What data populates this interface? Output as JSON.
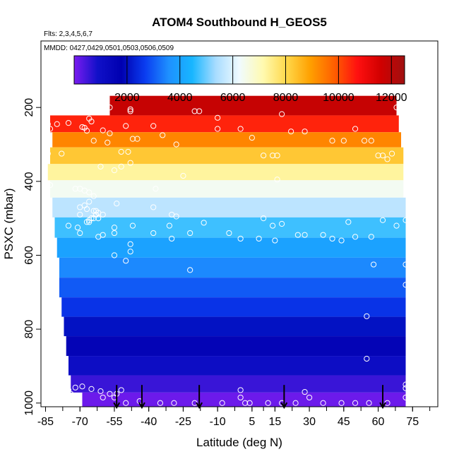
{
  "chart_data": {
    "type": "heatmap",
    "title": "ATOM4 Southbound H_GEOS5",
    "subtitle_flights": "Flts: 2,3,4,5,6,7",
    "subtitle_dates": "MMDD: 0427,0429,0501,0503,0506,0509",
    "xlabel": "Latitude (deg N)",
    "ylabel": "PSXC (mbar)",
    "xlim": [
      -87,
      86
    ],
    "ylim": [
      1010,
      20
    ],
    "x_ticks": [
      -85,
      -70,
      -55,
      -40,
      -25,
      -10,
      5,
      15,
      30,
      45,
      60,
      75
    ],
    "x_tick_labels": [
      "-85",
      "-70",
      "-55",
      "-40",
      "-25",
      "-10",
      "5",
      "15",
      "30",
      "45",
      "60",
      "75"
    ],
    "x_minor_ticks": [
      -85,
      -77.5,
      -70,
      -62.5,
      -55,
      -47.5,
      -40,
      -32.5,
      -25,
      -17.5,
      -10,
      -2.5,
      5,
      10,
      15,
      22.5,
      30,
      37.5,
      45,
      52.5,
      60,
      67.5,
      75,
      82.5
    ],
    "y_ticks": [
      200,
      400,
      600,
      800,
      1000
    ],
    "y_tick_labels": [
      "200",
      "400",
      "600",
      "800",
      "1000"
    ],
    "colorbar": {
      "min": 0,
      "max": 12500,
      "ticks": [
        2000,
        4000,
        6000,
        8000,
        10000,
        12000
      ],
      "tick_labels": [
        "2000",
        "4000",
        "6000",
        "8000",
        "10000",
        "12000"
      ],
      "colors": [
        "#7a1cf0",
        "#1010c8",
        "#0000b0",
        "#0a3cf0",
        "#1e90ff",
        "#18b6ff",
        "#a8dcff",
        "#f0fbff",
        "#fffab0",
        "#ffd84a",
        "#ffa000",
        "#ff6000",
        "#ff1010",
        "#d00000",
        "#a01010"
      ]
    },
    "grid": false,
    "levels": [
      {
        "p": 195,
        "lat_min": -57,
        "lat_max": 68,
        "value": 11800
      },
      {
        "p": 248,
        "lat_min": -83,
        "lat_max": 69,
        "value": 10500
      },
      {
        "p": 286,
        "lat_min": -82,
        "lat_max": 70,
        "value": 9300
      },
      {
        "p": 330,
        "lat_min": -83,
        "lat_max": 71,
        "value": 8300
      },
      {
        "p": 376,
        "lat_min": -84,
        "lat_max": 71,
        "value": 7300
      },
      {
        "p": 418,
        "lat_min": -83,
        "lat_max": 71,
        "value": 6400
      },
      {
        "p": 470,
        "lat_min": -82,
        "lat_max": 72,
        "value": 5600
      },
      {
        "p": 525,
        "lat_min": -81,
        "lat_max": 72,
        "value": 4700
      },
      {
        "p": 580,
        "lat_min": -80,
        "lat_max": 72,
        "value": 4000
      },
      {
        "p": 633,
        "lat_min": -79,
        "lat_max": 72,
        "value": 3500
      },
      {
        "p": 688,
        "lat_min": -79,
        "lat_max": 72,
        "value": 3000
      },
      {
        "p": 740,
        "lat_min": -78,
        "lat_max": 72,
        "value": 2550
      },
      {
        "p": 793,
        "lat_min": -77,
        "lat_max": 72,
        "value": 2050
      },
      {
        "p": 845,
        "lat_min": -76,
        "lat_max": 72,
        "value": 1550
      },
      {
        "p": 900,
        "lat_min": -75,
        "lat_max": 72,
        "value": 1050
      },
      {
        "p": 950,
        "lat_min": -74,
        "lat_max": 72,
        "value": 550
      },
      {
        "p": 993,
        "lat_min": -69,
        "lat_max": 72,
        "value": 120
      }
    ],
    "observation_points": [
      [
        -60,
        205
      ],
      [
        -57,
        200
      ],
      [
        -48,
        205
      ],
      [
        -48,
        210
      ],
      [
        -20,
        210
      ],
      [
        -18,
        210
      ],
      [
        -10,
        228
      ],
      [
        18,
        218
      ],
      [
        -66,
        230
      ],
      [
        -65,
        238
      ],
      [
        -84,
        245
      ],
      [
        -80,
        245
      ],
      [
        -75,
        242
      ],
      [
        -69,
        253
      ],
      [
        -50,
        250
      ],
      [
        -38,
        250
      ],
      [
        -10,
        258
      ],
      [
        0,
        258
      ],
      [
        22,
        265
      ],
      [
        28,
        265
      ],
      [
        50,
        258
      ],
      [
        68,
        200
      ],
      [
        70,
        200
      ],
      [
        -83,
        258
      ],
      [
        -68,
        255
      ],
      [
        -67,
        263
      ],
      [
        -60,
        262
      ],
      [
        -57,
        270
      ],
      [
        -47,
        285
      ],
      [
        -45,
        285
      ],
      [
        -34,
        275
      ],
      [
        -28,
        300
      ],
      [
        5,
        282
      ],
      [
        40,
        290
      ],
      [
        45,
        290
      ],
      [
        54,
        290
      ],
      [
        57,
        290
      ],
      [
        -64,
        290
      ],
      [
        -58,
        295
      ],
      [
        -84,
        325
      ],
      [
        -78,
        325
      ],
      [
        -52,
        320
      ],
      [
        -49,
        320
      ],
      [
        10,
        330
      ],
      [
        14,
        330
      ],
      [
        16,
        330
      ],
      [
        60,
        330
      ],
      [
        62,
        330
      ],
      [
        64,
        340
      ],
      [
        66,
        325
      ],
      [
        -48,
        350
      ],
      [
        -52,
        360
      ],
      [
        -61,
        360
      ],
      [
        -55,
        370
      ],
      [
        -25,
        385
      ],
      [
        16,
        395
      ],
      [
        -83,
        410
      ],
      [
        -72,
        420
      ],
      [
        -70,
        420
      ],
      [
        -68,
        425
      ],
      [
        -66,
        430
      ],
      [
        -64,
        440
      ],
      [
        -66,
        455
      ],
      [
        -68,
        465
      ],
      [
        -70,
        470
      ],
      [
        -63,
        480
      ],
      [
        -62,
        485
      ],
      [
        -63,
        490
      ],
      [
        -60,
        490
      ],
      [
        -62,
        500
      ],
      [
        -64,
        500
      ],
      [
        -66,
        510
      ],
      [
        -67,
        510
      ],
      [
        -75,
        520
      ],
      [
        -71,
        525
      ],
      [
        -55,
        525
      ],
      [
        -47,
        520
      ],
      [
        -70,
        540
      ],
      [
        -62,
        550
      ],
      [
        -60,
        545
      ],
      [
        -55,
        540
      ],
      [
        -38,
        540
      ],
      [
        -31,
        520
      ],
      [
        -30,
        555
      ],
      [
        -22,
        540
      ],
      [
        -16,
        512
      ],
      [
        -5,
        540
      ],
      [
        0,
        555
      ],
      [
        8,
        555
      ],
      [
        15,
        560
      ],
      [
        25,
        545
      ],
      [
        28,
        545
      ],
      [
        36,
        545
      ],
      [
        40,
        555
      ],
      [
        44,
        560
      ],
      [
        50,
        550
      ],
      [
        57,
        550
      ],
      [
        -55,
        600
      ],
      [
        -48,
        570
      ],
      [
        -67,
        475
      ],
      [
        -64,
        480
      ],
      [
        -65,
        500
      ],
      [
        -66,
        505
      ],
      [
        -70,
        490
      ],
      [
        -54,
        460
      ],
      [
        -37,
        420
      ],
      [
        -38,
        470
      ],
      [
        -30,
        490
      ],
      [
        -28,
        495
      ],
      [
        10,
        500
      ],
      [
        14,
        520
      ],
      [
        18,
        515
      ],
      [
        47,
        510
      ],
      [
        62,
        505
      ],
      [
        68,
        520
      ],
      [
        72,
        505
      ],
      [
        58,
        625
      ],
      [
        72,
        625
      ],
      [
        72,
        680
      ],
      [
        55,
        765
      ],
      [
        55,
        880
      ],
      [
        -69,
        955
      ],
      [
        -72,
        958
      ],
      [
        -65,
        962
      ],
      [
        -61,
        968
      ],
      [
        -54,
        975
      ],
      [
        -74,
        975
      ],
      [
        -60,
        985
      ],
      [
        -50,
        1000
      ],
      [
        -44,
        995
      ],
      [
        -35,
        1000
      ],
      [
        -29,
        1000
      ],
      [
        -20,
        1000
      ],
      [
        -8,
        1000
      ],
      [
        0,
        985
      ],
      [
        2,
        1000
      ],
      [
        4,
        1000
      ],
      [
        12,
        1000
      ],
      [
        18,
        1000
      ],
      [
        24,
        1000
      ],
      [
        36,
        1000
      ],
      [
        44,
        1000
      ],
      [
        50,
        1000
      ],
      [
        56,
        1000
      ],
      [
        64,
        1000
      ],
      [
        72,
        985
      ],
      [
        72,
        960
      ],
      [
        72,
        950
      ],
      [
        28,
        970
      ],
      [
        30,
        985
      ],
      [
        0,
        965
      ],
      [
        -55,
        985
      ],
      [
        -57,
        975
      ],
      [
        -52,
        965
      ],
      [
        -75,
        965
      ],
      [
        -22,
        640
      ],
      [
        -50,
        615
      ],
      [
        -48,
        590
      ]
    ],
    "arrows_lat": [
      -54,
      -43,
      -18,
      19,
      62
    ],
    "arrow_pressure": 995
  }
}
